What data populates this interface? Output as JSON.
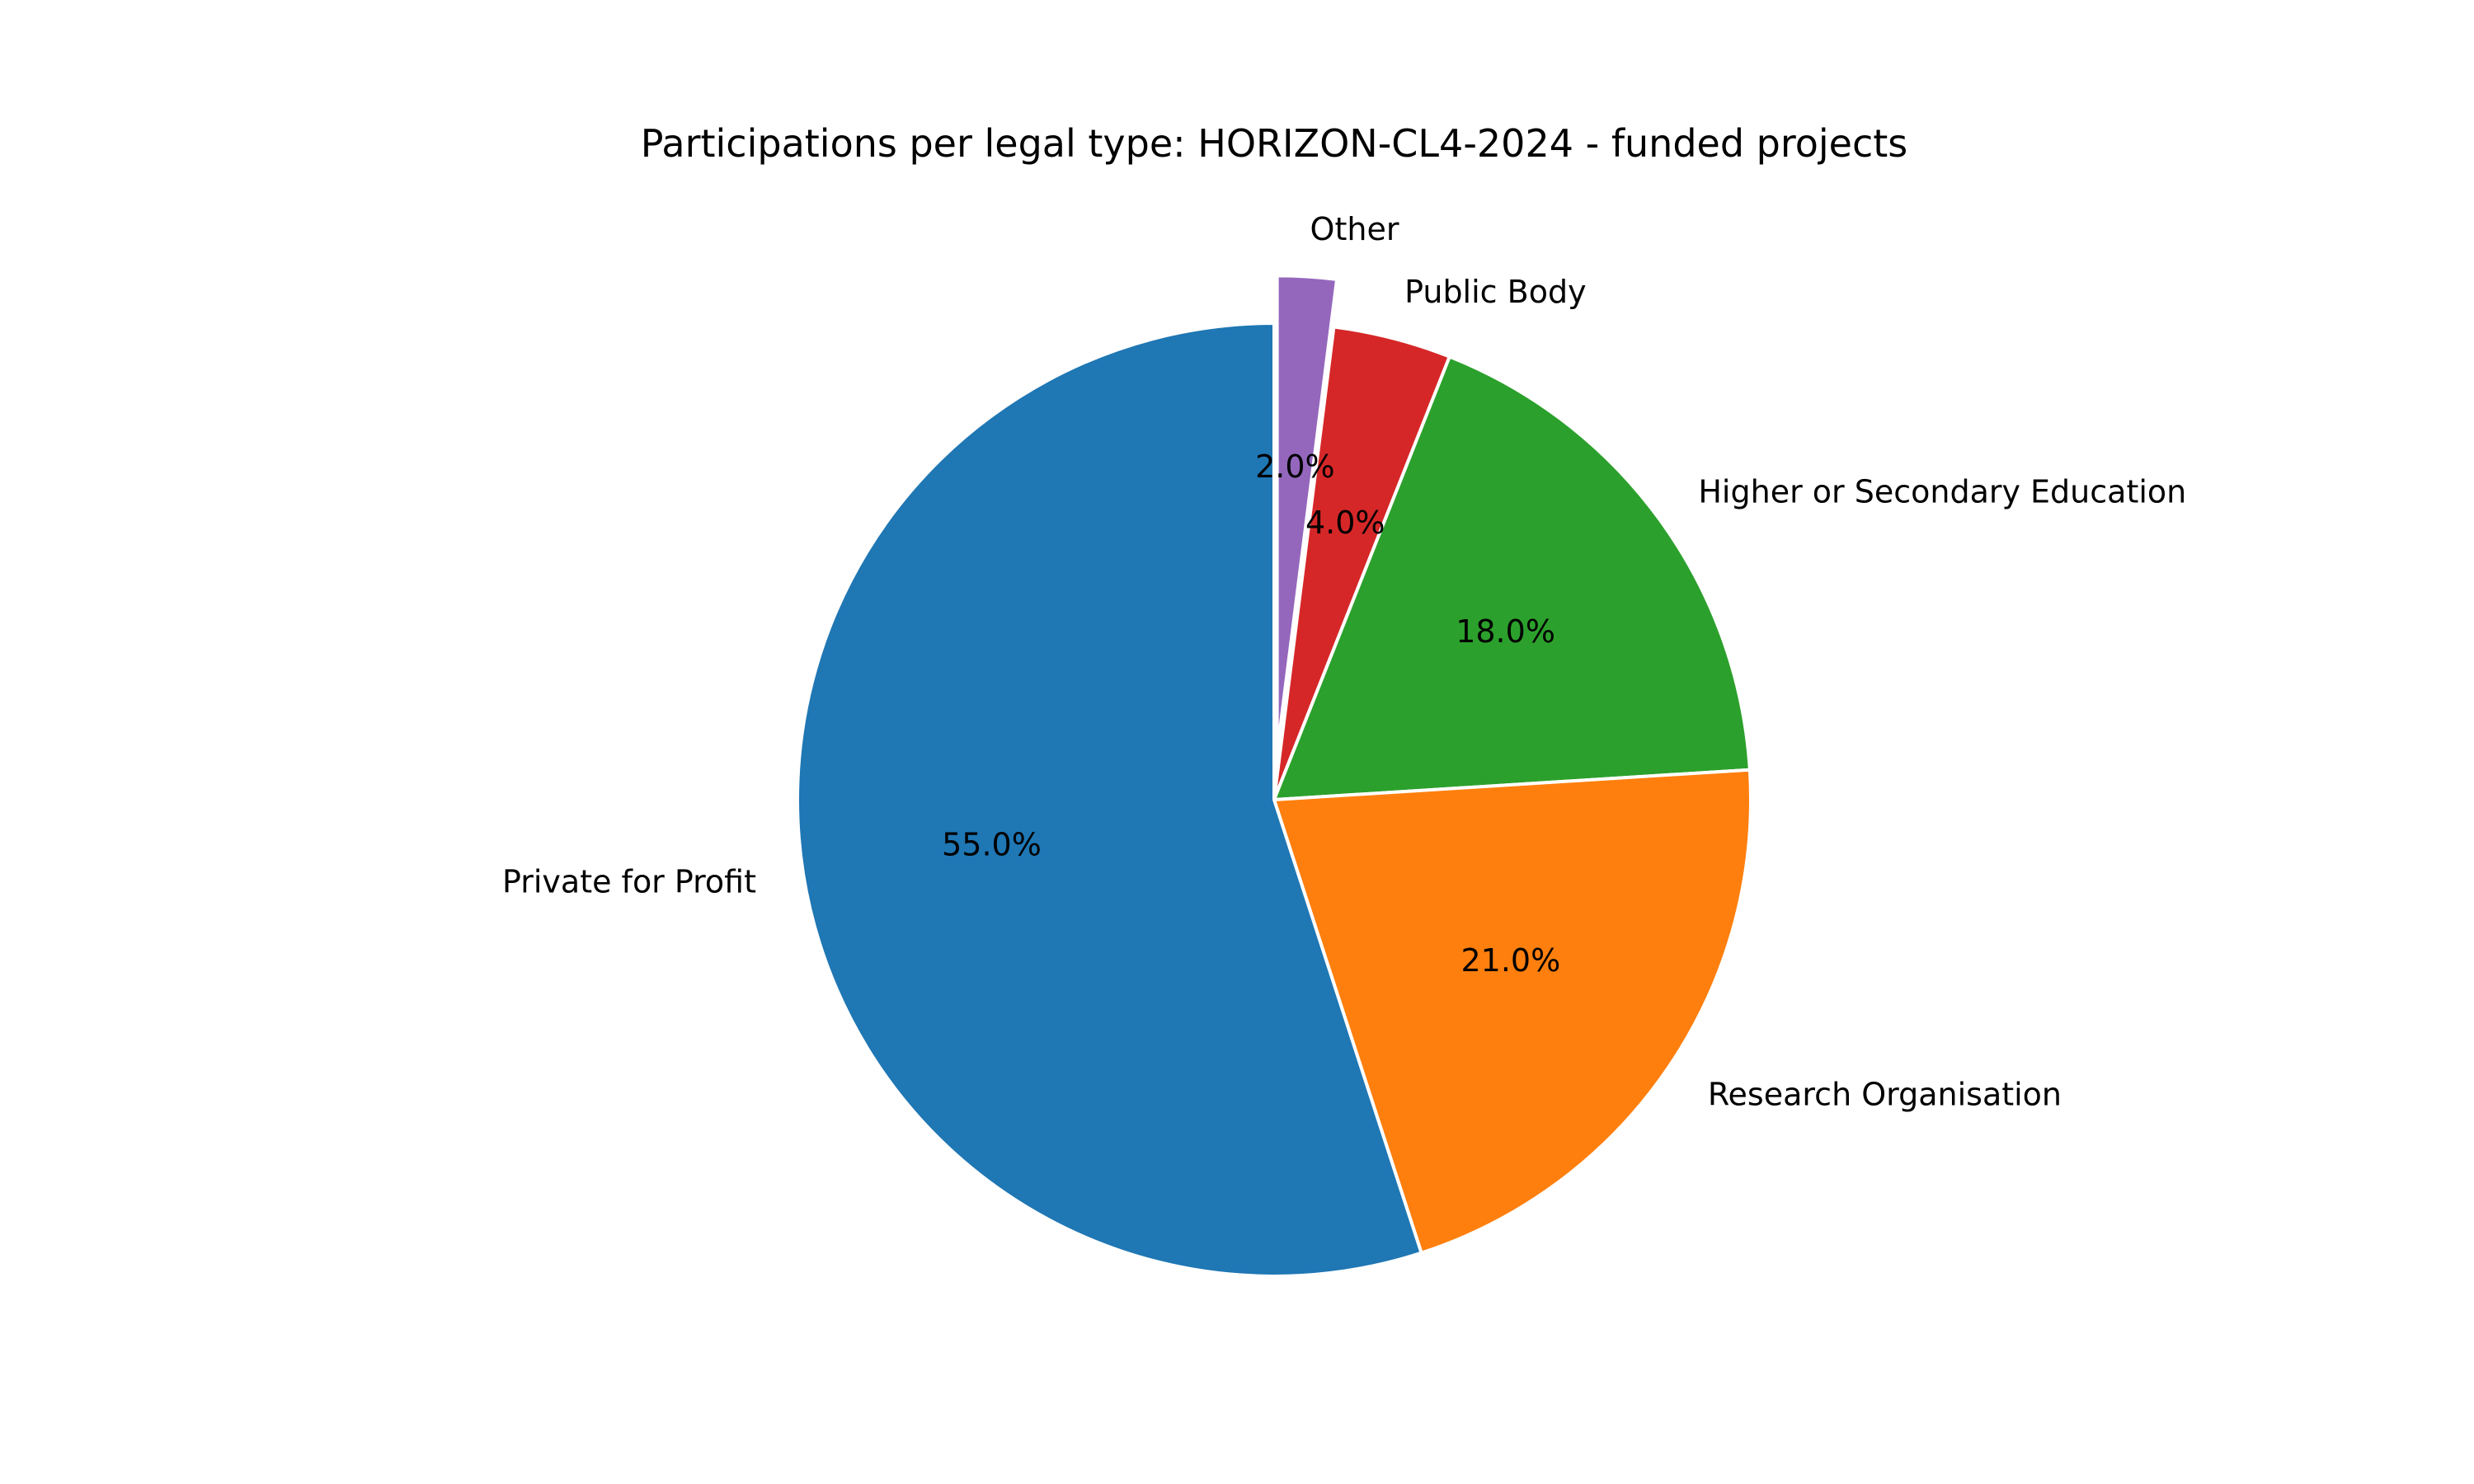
{
  "chart_data": {
    "type": "pie",
    "title": "Participations per legal type: HORIZON-CL4-2024 - funded projects",
    "start_angle_deg": 90,
    "direction": "clockwise",
    "slices": [
      {
        "label": "Other",
        "value": 2.0,
        "pct_label": "2.0%",
        "color": "#9467bd",
        "exploded": true
      },
      {
        "label": "Public Body",
        "value": 4.0,
        "pct_label": "4.0%",
        "color": "#d62728",
        "exploded": false
      },
      {
        "label": "Higher or Secondary Education",
        "value": 18.0,
        "pct_label": "18.0%",
        "color": "#2ca02c",
        "exploded": false
      },
      {
        "label": "Research Organisation",
        "value": 21.0,
        "pct_label": "21.0%",
        "color": "#ff7f0e",
        "exploded": false
      },
      {
        "label": "Private for Profit",
        "value": 55.0,
        "pct_label": "55.0%",
        "color": "#1f77b4",
        "exploded": false
      }
    ]
  }
}
